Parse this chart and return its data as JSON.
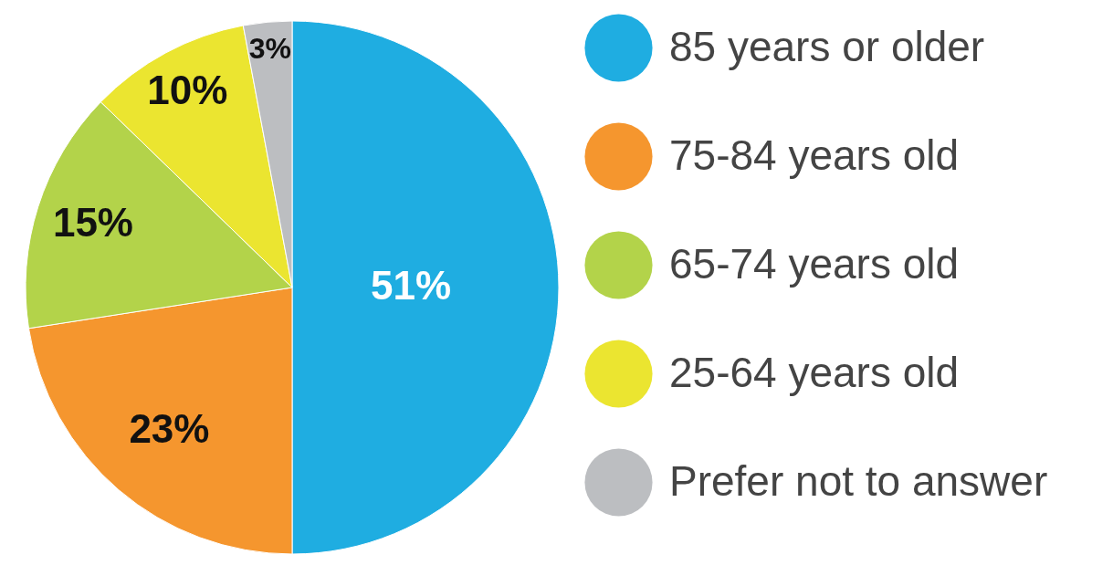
{
  "chart_data": {
    "type": "pie",
    "categories": [
      "85 years or older",
      "75-84 years old",
      "65-74 years old",
      "25-64 years old",
      "Prefer not to answer"
    ],
    "values": [
      51,
      23,
      15,
      10,
      3
    ],
    "colors": [
      "#1fade1",
      "#f5962e",
      "#b3d34a",
      "#ebe530",
      "#bcbec1"
    ],
    "value_labels": [
      "51%",
      "23%",
      "15%",
      "10%",
      "3%"
    ],
    "legend": "right"
  }
}
